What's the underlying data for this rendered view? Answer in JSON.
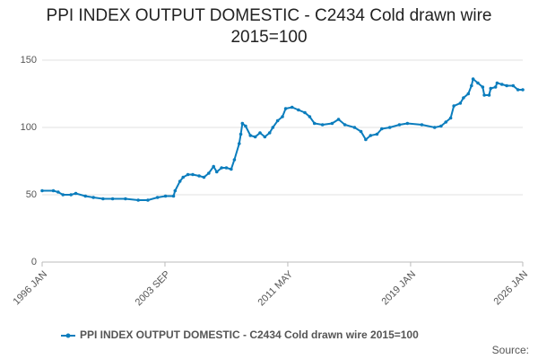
{
  "chart_data": {
    "type": "line",
    "title": "PPI INDEX OUTPUT DOMESTIC - C2434 Cold drawn wire 2015=100",
    "source": "Source:",
    "x": [
      1996.0,
      1996.7,
      1997.0,
      1997.3,
      1997.8,
      1998.1,
      1998.7,
      1999.2,
      1999.8,
      2000.4,
      2001.2,
      2002.0,
      2002.6,
      2003.2,
      2003.7,
      2004.2,
      2004.3,
      2004.6,
      2004.8,
      2005.1,
      2005.4,
      2005.8,
      2006.1,
      2006.4,
      2006.7,
      2006.9,
      2007.2,
      2007.5,
      2007.8,
      2008.0,
      2008.3,
      2008.4,
      2008.5,
      2008.7,
      2009.0,
      2009.3,
      2009.6,
      2009.9,
      2010.2,
      2010.4,
      2010.7,
      2011.0,
      2011.2,
      2011.6,
      2012.0,
      2012.4,
      2012.7,
      2013.0,
      2013.5,
      2014.1,
      2014.5,
      2014.9,
      2015.5,
      2015.9,
      2016.2,
      2016.5,
      2016.9,
      2017.2,
      2017.7,
      2018.3,
      2018.8,
      2019.7,
      2020.5,
      2020.9,
      2021.2,
      2021.5,
      2021.7,
      2022.1,
      2022.3,
      2022.6,
      2022.8,
      2022.9,
      2023.2,
      2023.5,
      2023.6,
      2023.9,
      2024.0,
      2024.3,
      2024.4,
      2024.7,
      2025.0,
      2025.4,
      2025.7,
      2026.0
    ],
    "series": [
      {
        "name": "PPI INDEX OUTPUT DOMESTIC - C2434 Cold drawn wire 2015=100",
        "color": "#0b7dbd",
        "values": [
          53,
          53,
          52,
          50,
          50,
          51,
          49,
          48,
          47,
          47,
          47,
          46,
          46,
          48,
          49,
          49,
          53,
          60,
          63,
          65,
          65,
          64,
          63,
          66,
          71,
          67,
          70,
          70,
          69,
          76,
          88,
          95,
          103,
          101,
          94,
          93,
          96,
          93,
          96,
          100,
          105,
          108,
          114,
          115,
          113,
          111,
          108,
          103,
          102,
          103,
          106,
          102,
          100,
          97,
          91,
          94,
          95,
          99,
          100,
          102,
          103,
          102,
          100,
          101,
          104,
          107,
          116,
          118,
          122,
          125,
          131,
          136,
          133,
          130,
          124,
          124,
          129,
          130,
          133,
          132,
          131,
          131,
          128,
          128
        ]
      }
    ],
    "xlim": [
      1996,
      2026
    ],
    "xticks": [
      {
        "value": 1996,
        "label": "1996 JAN"
      },
      {
        "value": 2003.667,
        "label": "2003 SEP"
      },
      {
        "value": 2011.333,
        "label": "2011 MAY"
      },
      {
        "value": 2019,
        "label": "2019 JAN"
      },
      {
        "value": 2026,
        "label": "2026 JAN"
      }
    ],
    "ylim": [
      0,
      150
    ],
    "yticks": [
      0,
      50,
      100,
      150
    ],
    "grid": true
  }
}
